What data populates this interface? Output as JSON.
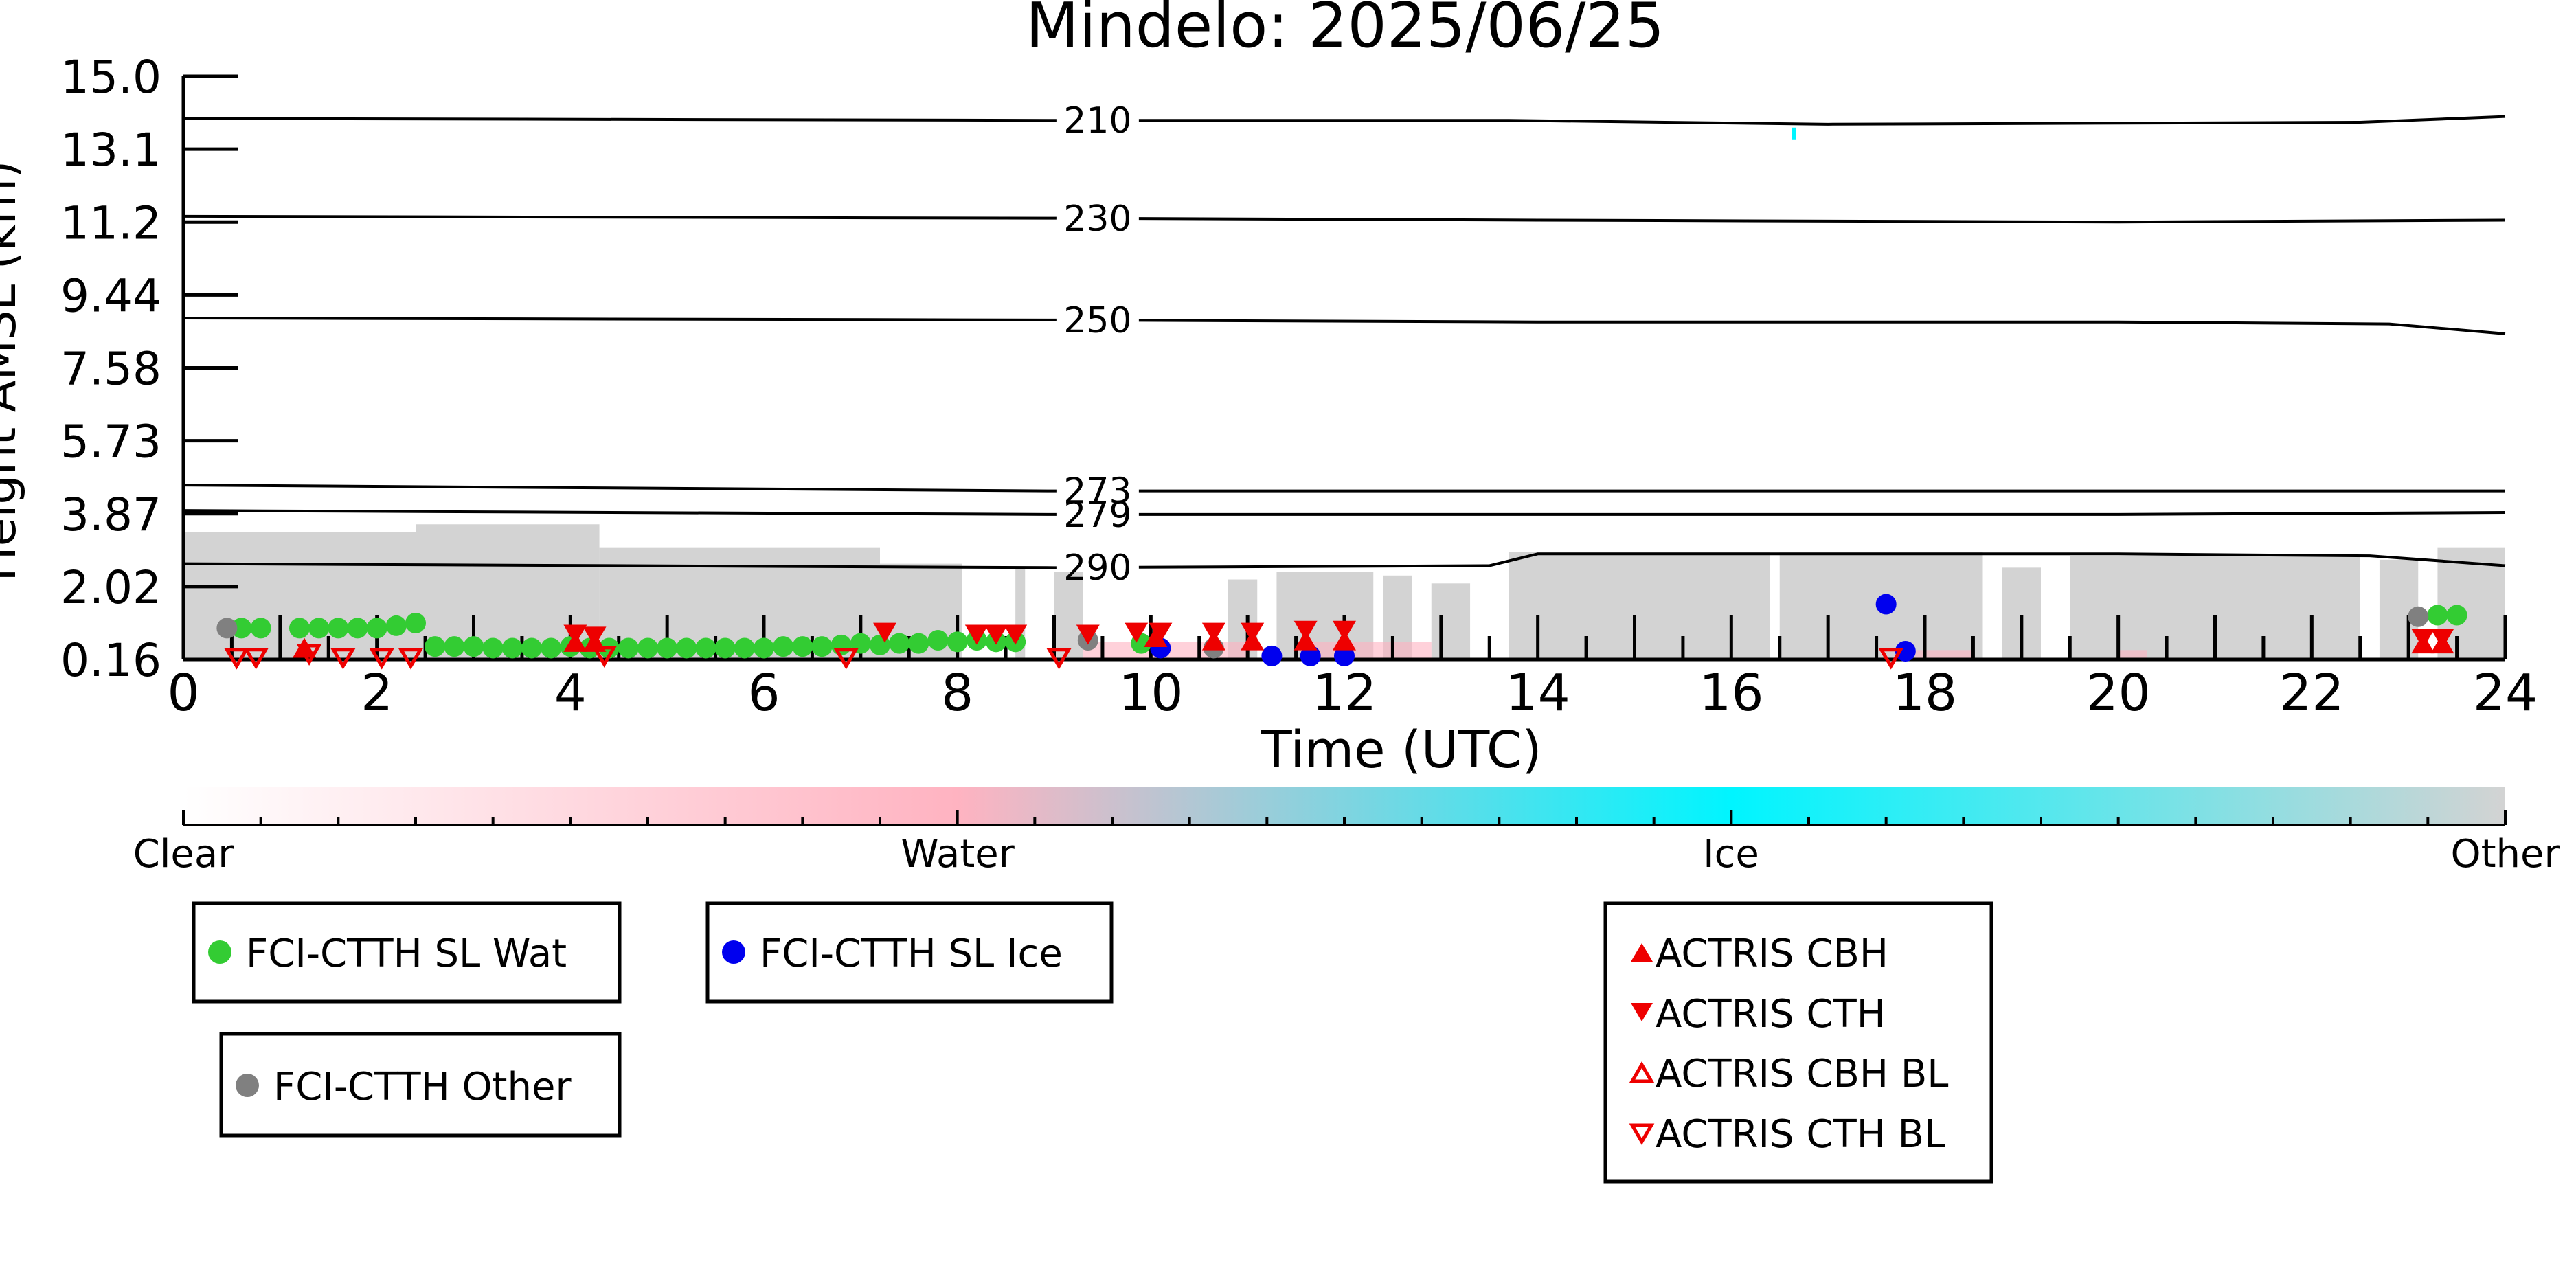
{
  "chart_data": {
    "type": "scatter",
    "title": "Mindelo: 2025/06/25",
    "xlabel": "Time (UTC)",
    "ylabel": "Height AMSL (km)",
    "xlim": [
      0,
      24
    ],
    "x_ticks": [
      "0",
      "2",
      "4",
      "6",
      "8",
      "10",
      "12",
      "14",
      "16",
      "18",
      "20",
      "22",
      "24"
    ],
    "y_tick_labels": [
      "0.16",
      "2.02",
      "3.87",
      "5.73",
      "7.58",
      "9.44",
      "11.2",
      "13.1",
      "15.0"
    ],
    "y_tick_values": [
      0.16,
      2.02,
      3.87,
      5.73,
      7.58,
      9.44,
      11.2,
      13.1,
      15.0
    ],
    "ylim": [
      0.16,
      15.0
    ],
    "grid": false,
    "background_cloud_mask": {
      "description_colors": {
        "clear": "#ffffff",
        "water": "#ffb3c1",
        "ice": "#00f5ff",
        "other": "#d3d3d3"
      },
      "other_segments": [
        {
          "x0": 0.0,
          "x1": 2.4,
          "top": 3.4
        },
        {
          "x0": 2.4,
          "x1": 4.3,
          "top": 3.6
        },
        {
          "x0": 4.3,
          "x1": 7.2,
          "top": 3.0
        },
        {
          "x0": 7.2,
          "x1": 8.05,
          "top": 2.6
        },
        {
          "x0": 8.6,
          "x1": 8.7,
          "top": 2.5
        },
        {
          "x0": 9.0,
          "x1": 9.3,
          "top": 2.4
        },
        {
          "x0": 10.8,
          "x1": 11.1,
          "top": 2.2
        },
        {
          "x0": 11.3,
          "x1": 12.3,
          "top": 2.4
        },
        {
          "x0": 12.4,
          "x1": 12.7,
          "top": 2.3
        },
        {
          "x0": 12.9,
          "x1": 13.3,
          "top": 2.1
        },
        {
          "x0": 13.7,
          "x1": 16.4,
          "top": 2.9
        },
        {
          "x0": 16.5,
          "x1": 18.6,
          "top": 2.9
        },
        {
          "x0": 18.8,
          "x1": 19.2,
          "top": 2.5
        },
        {
          "x0": 19.5,
          "x1": 22.5,
          "top": 2.8
        },
        {
          "x0": 22.7,
          "x1": 23.1,
          "top": 2.7
        },
        {
          "x0": 23.3,
          "x1": 24.0,
          "top": 3.0
        }
      ],
      "water_segments": [
        {
          "x0": 9.3,
          "x1": 11.0,
          "top": 0.6
        },
        {
          "x0": 11.6,
          "x1": 12.9,
          "top": 0.6
        },
        {
          "x0": 17.9,
          "x1": 18.5,
          "top": 0.4
        },
        {
          "x0": 20.0,
          "x1": 20.3,
          "top": 0.4
        }
      ],
      "ice_marks": [
        {
          "x": 16.65,
          "y": 13.5
        }
      ]
    },
    "isotherms": [
      {
        "label": "210",
        "label_x": 9.45,
        "x": [
          0,
          9.0,
          13.7,
          17,
          22.5,
          24
        ],
        "y": [
          13.9,
          13.85,
          13.85,
          13.75,
          13.8,
          13.95
        ]
      },
      {
        "label": "230",
        "label_x": 9.45,
        "x": [
          0,
          9.0,
          14,
          20,
          24
        ],
        "y": [
          11.35,
          11.3,
          11.25,
          11.2,
          11.25
        ]
      },
      {
        "label": "250",
        "label_x": 9.45,
        "x": [
          0,
          9.0,
          14,
          20,
          22.8,
          24
        ],
        "y": [
          8.85,
          8.8,
          8.75,
          8.75,
          8.7,
          8.45
        ]
      },
      {
        "label": "273",
        "label_x": 9.45,
        "x": [
          0,
          9.0,
          14,
          20,
          24
        ],
        "y": [
          4.6,
          4.45,
          4.45,
          4.45,
          4.45
        ]
      },
      {
        "label": "279",
        "label_x": 9.45,
        "x": [
          0,
          9.0,
          14,
          20,
          24
        ],
        "y": [
          3.95,
          3.85,
          3.85,
          3.85,
          3.9
        ]
      },
      {
        "label": "290",
        "label_x": 9.45,
        "x": [
          0,
          9.0,
          13.5,
          14,
          20,
          22.6,
          24
        ],
        "y": [
          2.6,
          2.5,
          2.55,
          2.85,
          2.85,
          2.8,
          2.55
        ]
      }
    ],
    "series": [
      {
        "name": "FCI-CTTH SL Wat",
        "color": "#33cc33",
        "marker": "circle",
        "x": [
          0.6,
          0.8,
          1.2,
          1.4,
          1.6,
          1.8,
          2.0,
          2.2,
          2.4,
          2.6,
          2.8,
          3.0,
          3.2,
          3.4,
          3.6,
          3.8,
          4.0,
          4.2,
          4.4,
          4.6,
          4.8,
          5.0,
          5.2,
          5.4,
          5.6,
          5.8,
          6.0,
          6.2,
          6.4,
          6.6,
          6.8,
          7.0,
          7.2,
          7.4,
          7.6,
          7.8,
          8.0,
          8.2,
          8.4,
          8.6,
          9.9,
          23.3,
          23.5
        ],
        "y": [
          0.96,
          0.96,
          0.96,
          0.96,
          0.96,
          0.96,
          0.96,
          1.02,
          1.09,
          0.49,
          0.49,
          0.49,
          0.45,
          0.45,
          0.45,
          0.45,
          0.49,
          0.45,
          0.45,
          0.45,
          0.45,
          0.45,
          0.45,
          0.45,
          0.45,
          0.45,
          0.45,
          0.49,
          0.49,
          0.49,
          0.53,
          0.57,
          0.53,
          0.57,
          0.57,
          0.65,
          0.61,
          0.65,
          0.61,
          0.61,
          0.57,
          1.29,
          1.29
        ]
      },
      {
        "name": "FCI-CTTH SL Ice",
        "color": "#0000ee",
        "marker": "circle",
        "x": [
          10.1,
          11.25,
          11.65,
          12.0,
          17.6,
          17.8
        ],
        "y": [
          0.45,
          0.25,
          0.25,
          0.25,
          1.57,
          0.37
        ]
      },
      {
        "name": "FCI-CTTH Other",
        "color": "#808080",
        "marker": "circle",
        "x": [
          0.45,
          9.35,
          10.65,
          23.1
        ],
        "y": [
          0.96,
          0.65,
          0.45,
          1.25
        ]
      },
      {
        "name": "ACTRIS CBH",
        "color": "#ee0000",
        "marker": "triangle-up",
        "x": [
          1.25,
          4.05,
          4.25,
          10.05,
          10.65,
          11.05,
          11.6,
          12.0,
          23.15,
          23.35
        ],
        "y": [
          0.45,
          0.6,
          0.6,
          0.72,
          0.64,
          0.64,
          0.64,
          0.64,
          0.56,
          0.56
        ]
      },
      {
        "name": "ACTRIS CTH",
        "color": "#ee0000",
        "marker": "triangle-down",
        "x": [
          4.05,
          4.25,
          7.25,
          8.2,
          8.4,
          8.6,
          9.35,
          9.85,
          10.1,
          10.65,
          11.05,
          11.6,
          12.0,
          23.15,
          23.35
        ],
        "y": [
          0.8,
          0.75,
          0.85,
          0.8,
          0.8,
          0.8,
          0.8,
          0.85,
          0.85,
          0.85,
          0.85,
          0.9,
          0.9,
          0.7,
          0.7
        ]
      },
      {
        "name": "ACTRIS CBH BL",
        "color": "#ee0000",
        "marker": "triangle-up-open",
        "x": [],
        "y": []
      },
      {
        "name": "ACTRIS CTH BL",
        "color": "#ee0000",
        "marker": "triangle-down-open",
        "x": [
          0.55,
          0.75,
          1.3,
          1.65,
          2.05,
          2.35,
          4.35,
          6.85,
          9.05,
          17.65
        ],
        "y": [
          0.2,
          0.2,
          0.3,
          0.2,
          0.2,
          0.2,
          0.25,
          0.2,
          0.2,
          0.2
        ]
      }
    ],
    "colorbar": {
      "labels": [
        "Clear",
        "Water",
        "Ice",
        "Other"
      ],
      "values": [
        0,
        1,
        2,
        3
      ],
      "colors": [
        "#ffffff",
        "#ffb3c1",
        "#00f5ff",
        "#d3d3d3"
      ]
    },
    "legends": [
      {
        "entries": [
          "FCI-CTTH SL Wat"
        ]
      },
      {
        "entries": [
          "FCI-CTTH SL Ice"
        ]
      },
      {
        "entries": [
          "FCI-CTTH Other"
        ]
      },
      {
        "entries": [
          "ACTRIS CBH",
          "ACTRIS CTH",
          "ACTRIS CBH BL",
          "ACTRIS CTH BL"
        ]
      }
    ]
  }
}
